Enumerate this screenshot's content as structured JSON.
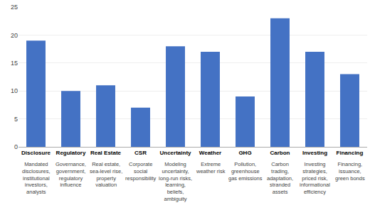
{
  "chart_data": {
    "type": "bar",
    "categories": [
      "Disclosure",
      "Regulatory",
      "Real Estate",
      "CSR",
      "Uncertainty",
      "Weather",
      "GHG",
      "Carbon",
      "Investing",
      "Financing"
    ],
    "values": [
      19,
      10,
      11,
      7,
      18,
      17,
      9,
      23,
      17,
      13
    ],
    "annotations": [
      "Mandated\ndisclosures,\ninstitutional\ninvestors,\nanalysts",
      "Governance,\ngovernment,\nregulatory\ninfluence",
      "Real estate,\nsea-level rise,\nproperty\nvaluation",
      "Corporate\nsocial\nresponsibility",
      "Modeling\nuncertainty,\nlong-run risks,\nlearning,\nbeliefs,\nambiguity",
      "Extreme\nweather risk",
      "Pollution,\ngreenhouse\ngas emissions",
      "Carbon\ntrading,\nadaptation,\nstranded\nassets",
      "Investing\nstrategies,\npriced risk,\ninformational\nefficiency",
      "Financing,\nissuance,\ngreen bonds"
    ],
    "color": "#4472C4",
    "ylim": [
      0,
      25
    ],
    "yticks": [
      0,
      5,
      10,
      15,
      20,
      25
    ],
    "grid": true
  }
}
